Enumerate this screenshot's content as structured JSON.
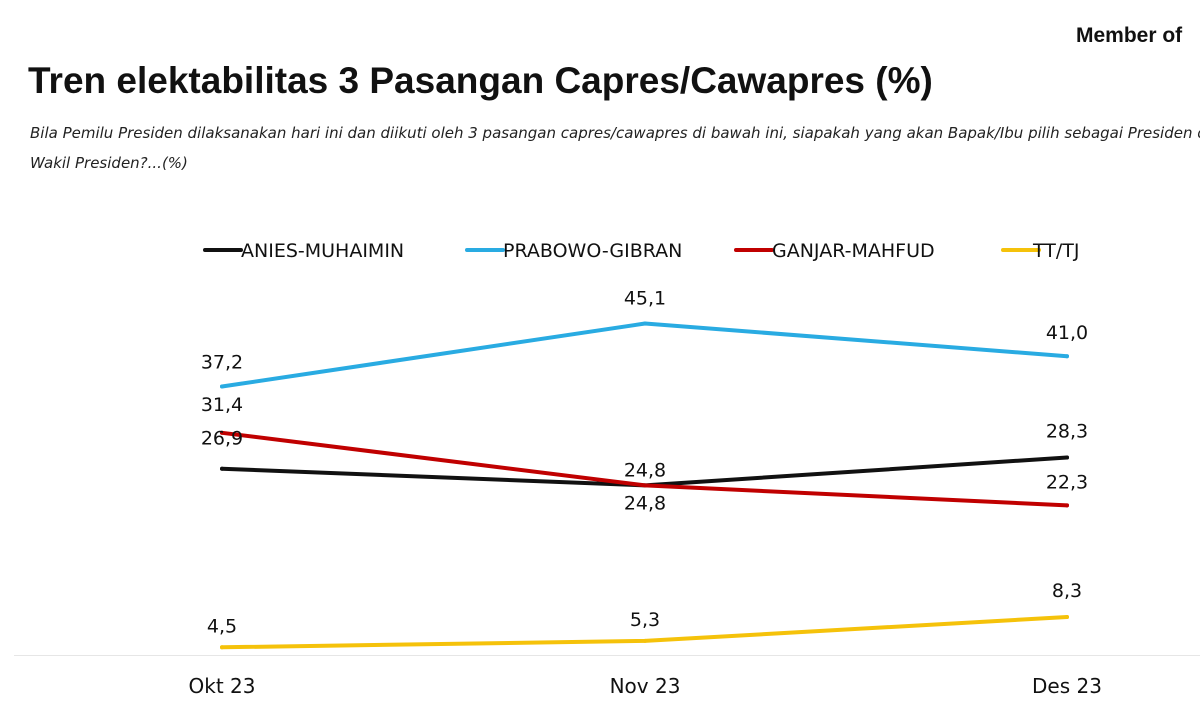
{
  "header": {
    "member_text": "Member of",
    "title": "Tren elektabilitas 3 Pasangan Capres/Cawapres (%)",
    "question": "Bila Pemilu Presiden dilaksanakan hari ini dan diikuti oleh 3 pasangan capres/cawapres di bawah ini, siapakah yang akan Bapak/Ibu pilih sebagai Presiden dan Wakil Presiden?...(%)"
  },
  "chart_data": {
    "type": "line",
    "categories": [
      "Okt 23",
      "Nov 23",
      "Des 23"
    ],
    "ylim": [
      0,
      50
    ],
    "grid": false,
    "legend": "top",
    "series": [
      {
        "name": "ANIES-MUHAIMIN",
        "color": "#111111",
        "values": [
          26.9,
          24.8,
          28.3
        ],
        "labels": [
          "26,9",
          "24,8",
          "28,3"
        ]
      },
      {
        "name": "PRABOWO-GIBRAN",
        "color": "#29abe2",
        "values": [
          37.2,
          45.1,
          41.0
        ],
        "labels": [
          "37,2",
          "45,1",
          "41,0"
        ]
      },
      {
        "name": "GANJAR-MAHFUD",
        "color": "#c00000",
        "values": [
          31.4,
          24.8,
          22.3
        ],
        "labels": [
          "31,4",
          "24,8",
          "22,3"
        ]
      },
      {
        "name": "TT/TJ",
        "color": "#f5c20a",
        "values": [
          4.5,
          5.3,
          8.3
        ],
        "labels": [
          "4,5",
          "5,3",
          "8,3"
        ]
      }
    ]
  }
}
